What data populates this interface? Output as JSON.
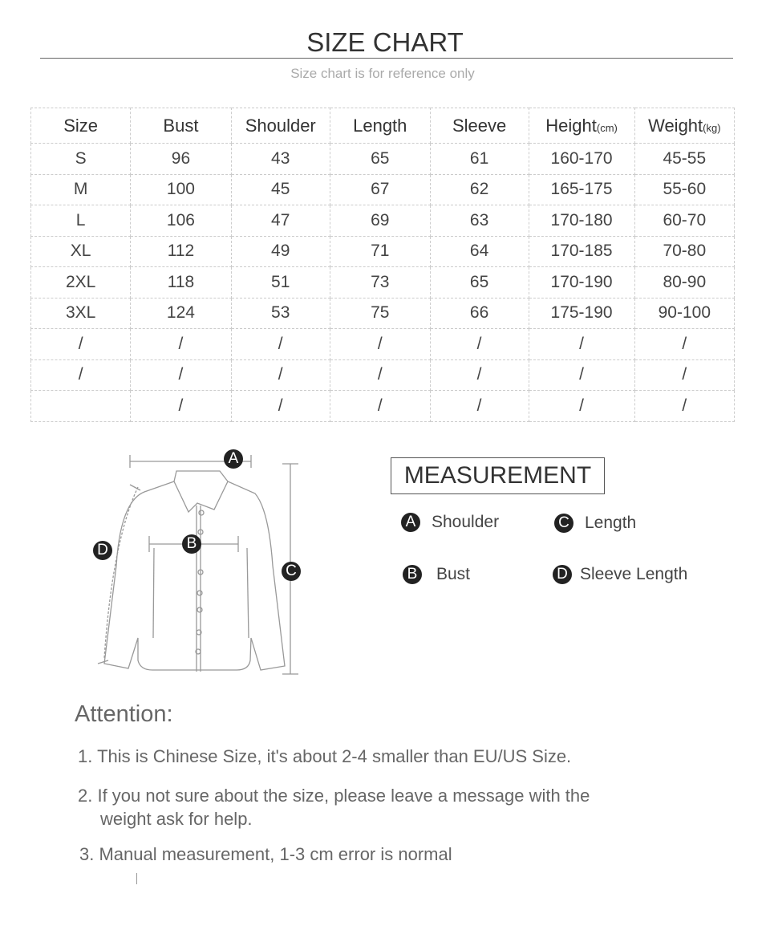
{
  "header": {
    "title": "SIZE CHART",
    "subtitle": "Size chart is for reference only"
  },
  "table": {
    "headers": [
      "Size",
      "Bust",
      "Shoulder",
      "Length",
      "Sleeve",
      "Height",
      "Weight"
    ],
    "units": {
      "height": "(cm)",
      "weight": "(kg)"
    },
    "rows": [
      [
        "S",
        "96",
        "43",
        "65",
        "61",
        "160-170",
        "45-55"
      ],
      [
        "M",
        "100",
        "45",
        "67",
        "62",
        "165-175",
        "55-60"
      ],
      [
        "L",
        "106",
        "47",
        "69",
        "63",
        "170-180",
        "60-70"
      ],
      [
        "XL",
        "112",
        "49",
        "71",
        "64",
        "170-185",
        "70-80"
      ],
      [
        "2XL",
        "118",
        "51",
        "73",
        "65",
        "170-190",
        "80-90"
      ],
      [
        "3XL",
        "124",
        "53",
        "75",
        "66",
        "175-190",
        "90-100"
      ],
      [
        "/",
        "/",
        "/",
        "/",
        "/",
        "/",
        "/"
      ],
      [
        "/",
        "/",
        "/",
        "/",
        "/",
        "/",
        "/"
      ],
      [
        "",
        "/",
        "/",
        "/",
        "/",
        "/",
        "/"
      ]
    ]
  },
  "diagram": {
    "labels": {
      "a": "A",
      "b": "B",
      "c": "C",
      "d": "D"
    }
  },
  "measurement": {
    "title": "MEASUREMENT",
    "items": [
      {
        "key": "A",
        "label": "Shoulder"
      },
      {
        "key": "C",
        "label": "Length"
      },
      {
        "key": "B",
        "label": "Bust"
      },
      {
        "key": "D",
        "label": "Sleeve Length"
      }
    ]
  },
  "attention": {
    "title": "Attention:",
    "notes": [
      "1. This is Chinese Size, it's about 2-4 smaller than EU/US Size.",
      "2. If you not sure about the size, please leave a message with the",
      "weight ask for help.",
      "3. Manual measurement, 1-3 cm error is normal"
    ]
  }
}
